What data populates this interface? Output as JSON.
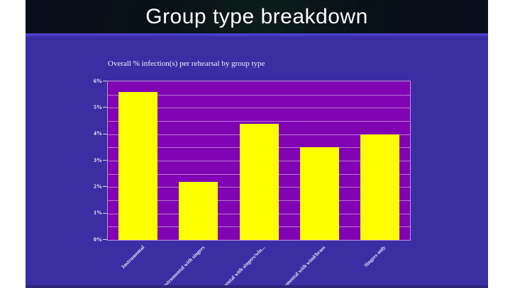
{
  "title_bar": {
    "title": "Group type breakdown"
  },
  "colors": {
    "page_bg": "#ffffff",
    "title_bar_bg": "#0a101b",
    "accent_line": "#4b3ec8",
    "slide_bg": "#3b2ea3",
    "plot_bg": "#8004b3",
    "bar_fill": "#fdfe02",
    "gridline": "rgba(255,255,255,0.45)",
    "text": "#f3effb"
  },
  "chart_data": {
    "type": "bar",
    "title": "Overall % infection(s) per rehearsal by group type",
    "categories": [
      "Instrumental",
      "Instrumental with singers",
      "Instrumental with singers/win...",
      "Instrumental with wind/brass",
      "Singers only"
    ],
    "values": [
      5.6,
      2.2,
      4.4,
      3.5,
      4.0
    ],
    "xlabel": "",
    "ylabel": "",
    "ylim": [
      0,
      6
    ],
    "y_major_step": 1,
    "y_minor_step": 0.5,
    "y_tick_suffix": "%",
    "grid": "horizontal",
    "legend": false,
    "bar_color": "#fdfe02",
    "x_label_rotation_deg": 45
  }
}
